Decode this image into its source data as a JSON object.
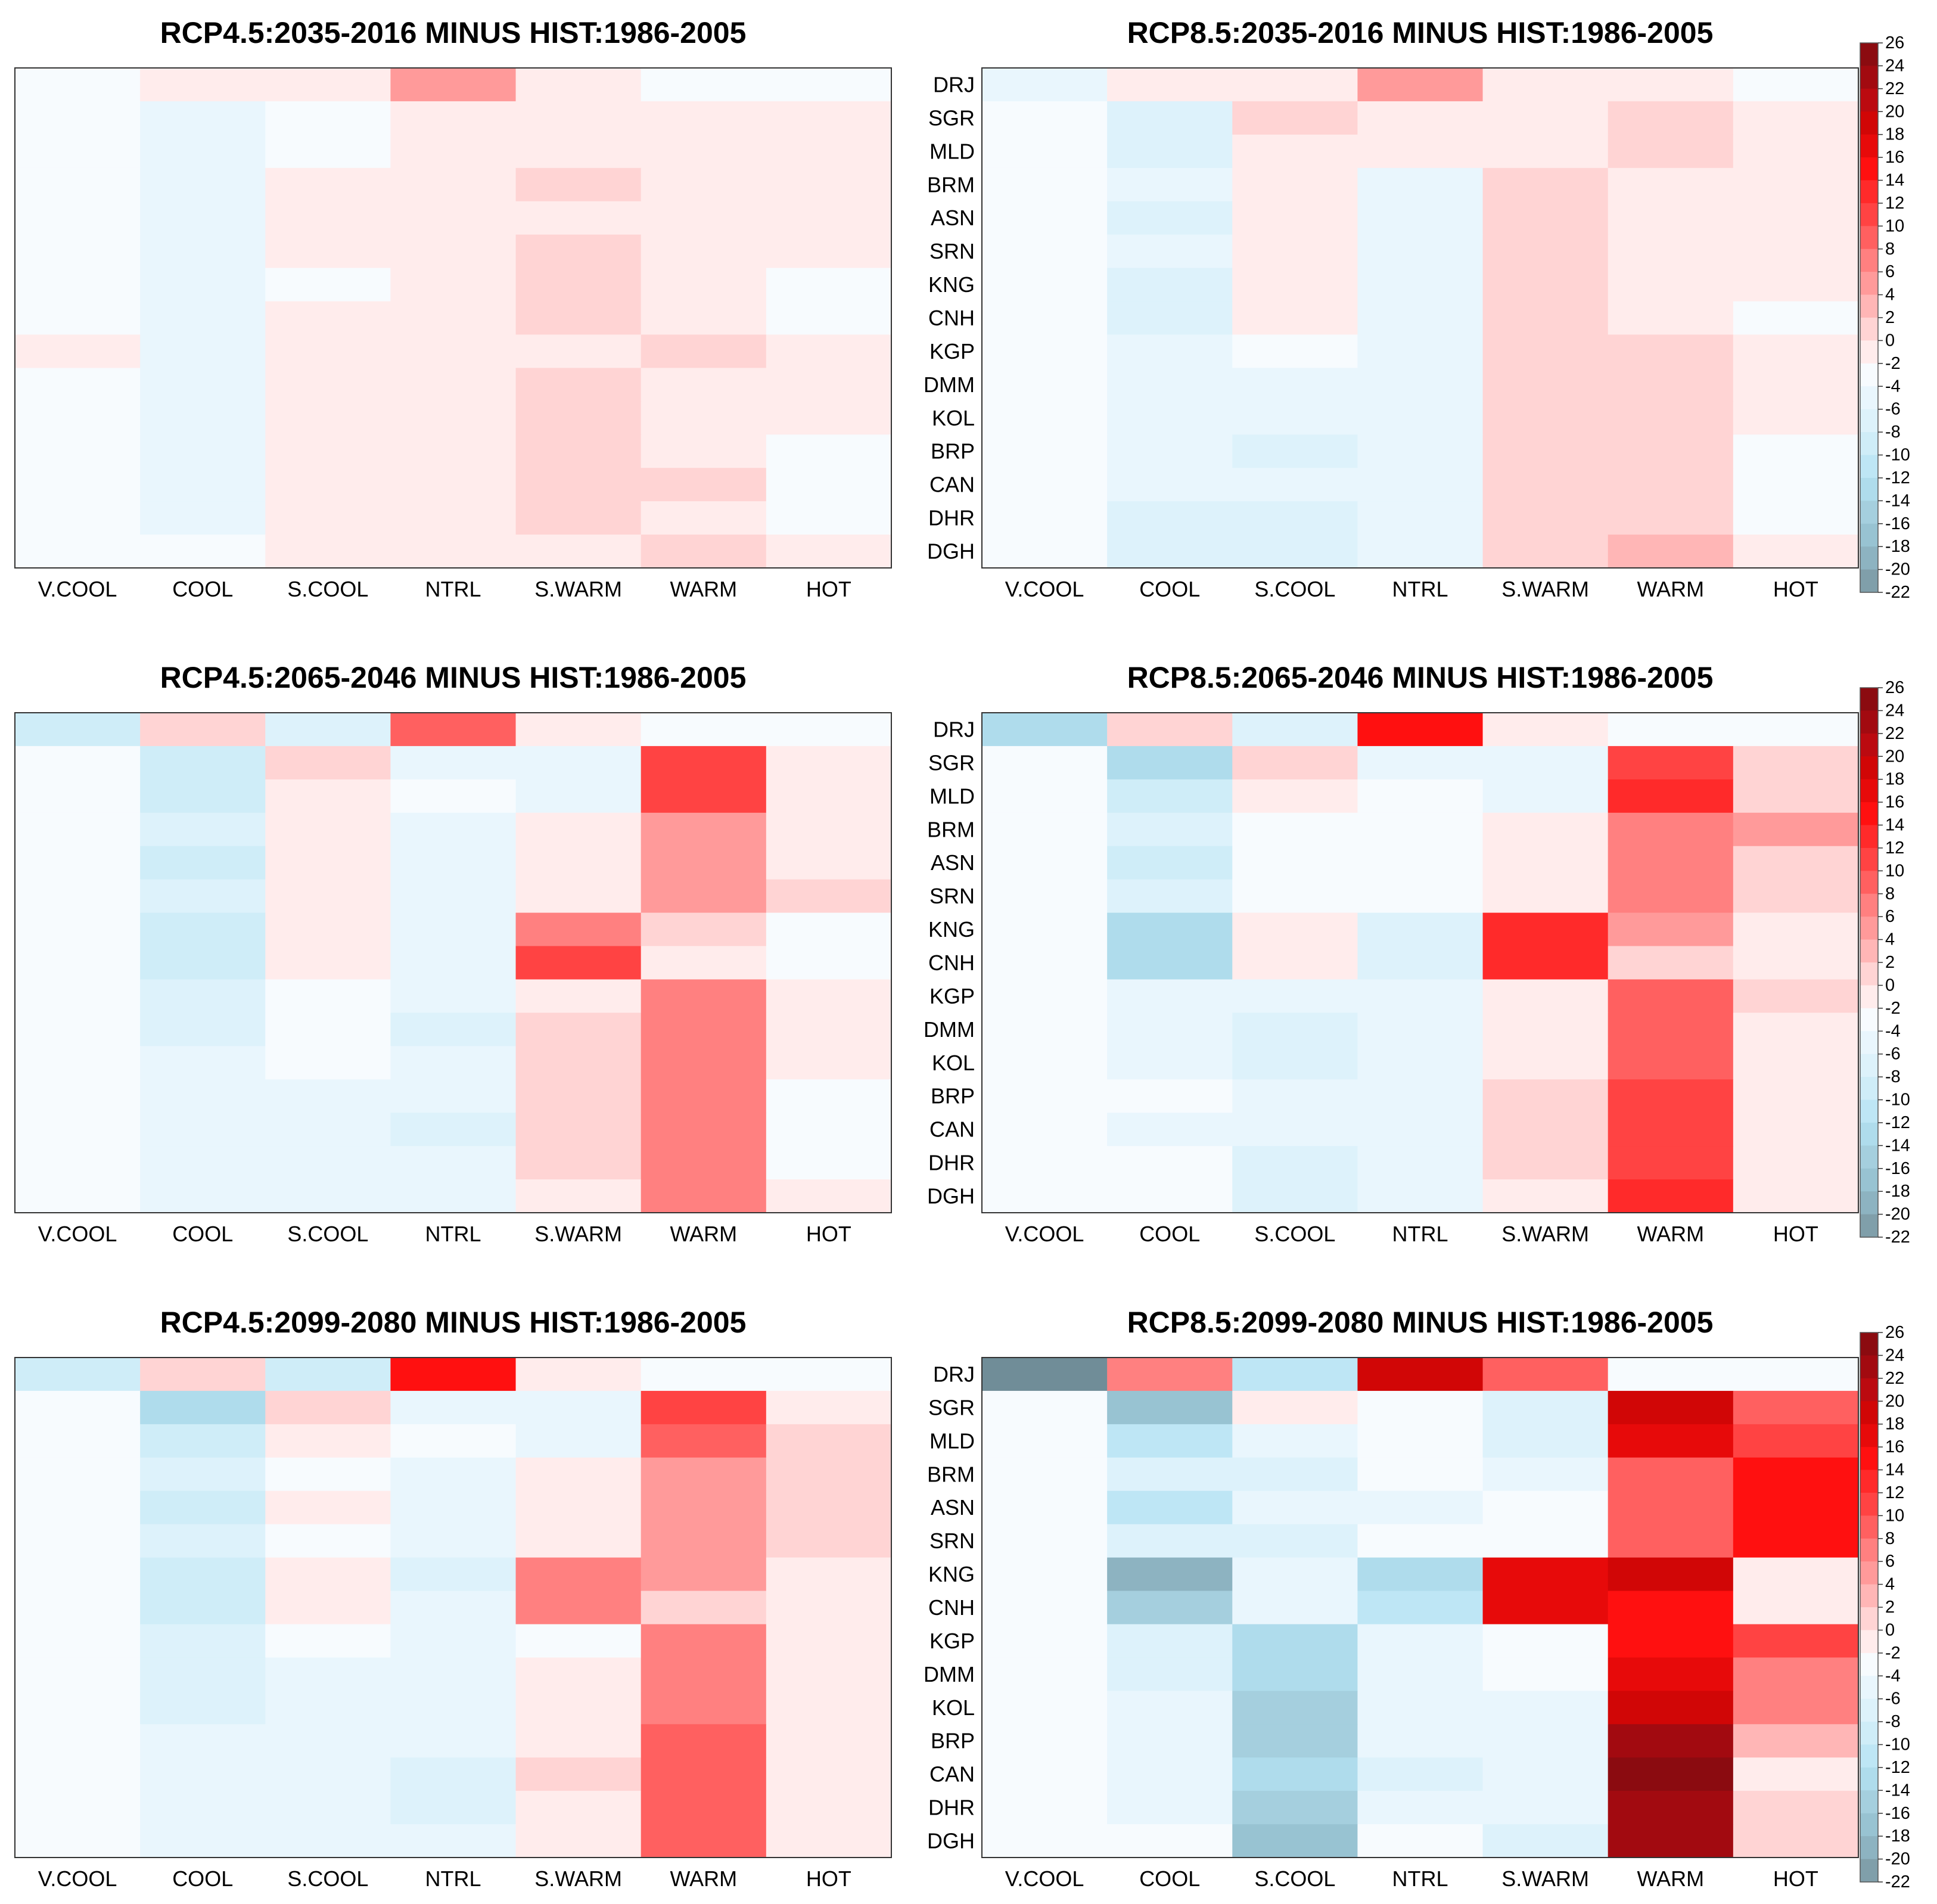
{
  "colorbar": {
    "ticks": [
      "26",
      "24",
      "22",
      "20",
      "18",
      "16",
      "14",
      "12",
      "10",
      "8",
      "6",
      "4",
      "2",
      "0",
      "-2",
      "-4",
      "-6",
      "-8",
      "-10",
      "-12",
      "-14",
      "-16",
      "-18",
      "-20",
      "-22"
    ],
    "colors": [
      "#8b0b10",
      "#a20a10",
      "#bb0a10",
      "#d10606",
      "#e70a0a",
      "#ff1010",
      "#ff2a2a",
      "#ff4343",
      "#ff6060",
      "#ff8080",
      "#ff9a9a",
      "#ffb6b6",
      "#ffd4d4",
      "#ffecec",
      "#f7fbfe",
      "#e9f6fd",
      "#ddf2fb",
      "#cfedf8",
      "#bee6f5",
      "#afdcec",
      "#a5cfde",
      "#98c3d2",
      "#8db3c1",
      "#809faa",
      "#708d98"
    ]
  },
  "chart_data": [
    {
      "type": "heatmap",
      "title": "RCP4.5:2035-2016 MINUS HIST:1986-2005",
      "categories": [
        "V.COOL",
        "COOL",
        "S.COOL",
        "NTRL",
        "S.WARM",
        "WARM",
        "HOT"
      ],
      "rows": [
        "DRJ",
        "SGR",
        "MLD",
        "BRM",
        "ASN",
        "SRN",
        "KNG",
        "CNH",
        "KGP",
        "DMM",
        "KOL",
        "BRP",
        "CAN",
        "DHR",
        "DGH"
      ],
      "show_row_labels": false,
      "zlim": [
        -22,
        26
      ],
      "values": [
        [
          -3,
          -1,
          -1,
          5,
          0,
          -2,
          -2
        ],
        [
          -2,
          -4,
          -2,
          -1,
          0,
          0,
          0
        ],
        [
          -2,
          -4,
          -2,
          0,
          0,
          0,
          0
        ],
        [
          -2,
          -4,
          0,
          -1,
          2,
          0,
          0
        ],
        [
          -2,
          -4,
          0,
          -1,
          0,
          0,
          0
        ],
        [
          -2,
          -4,
          0,
          -1,
          2,
          0,
          0
        ],
        [
          -2,
          -4,
          -2,
          0,
          2,
          0,
          -2
        ],
        [
          -2,
          -4,
          0,
          0,
          2,
          0,
          -2
        ],
        [
          0,
          -4,
          0,
          -1,
          0,
          2,
          -1
        ],
        [
          -2,
          -4,
          0,
          -1,
          2,
          0,
          -1
        ],
        [
          -2,
          -4,
          0,
          -1,
          2,
          0,
          -1
        ],
        [
          -2,
          -4,
          -1,
          -1,
          2,
          0,
          -2
        ],
        [
          -2,
          -4,
          -1,
          -1,
          2,
          2,
          -2
        ],
        [
          -2,
          -4,
          -1,
          -1,
          2,
          0,
          -2
        ],
        [
          -2,
          -2,
          -1,
          -1,
          0,
          2,
          -1
        ]
      ]
    },
    {
      "type": "heatmap",
      "title": "RCP8.5:2035-2016 MINUS HIST:1986-2005",
      "categories": [
        "V.COOL",
        "COOL",
        "S.COOL",
        "NTRL",
        "S.WARM",
        "WARM",
        "HOT"
      ],
      "rows": [
        "DRJ",
        "SGR",
        "MLD",
        "BRM",
        "ASN",
        "SRN",
        "KNG",
        "CNH",
        "KGP",
        "DMM",
        "KOL",
        "BRP",
        "CAN",
        "DHR",
        "DGH"
      ],
      "show_row_labels": true,
      "zlim": [
        -22,
        26
      ],
      "values": [
        [
          -4,
          0,
          0,
          5,
          0,
          -1,
          -2
        ],
        [
          -2,
          -6,
          2,
          -1,
          0,
          2,
          0
        ],
        [
          -2,
          -6,
          0,
          0,
          0,
          2,
          0
        ],
        [
          -2,
          -4,
          0,
          -4,
          2,
          0,
          0
        ],
        [
          -2,
          -6,
          0,
          -4,
          2,
          0,
          0
        ],
        [
          -2,
          -4,
          0,
          -4,
          2,
          0,
          0
        ],
        [
          -2,
          -6,
          0,
          -4,
          2,
          0,
          0
        ],
        [
          -2,
          -6,
          0,
          -4,
          2,
          0,
          -2
        ],
        [
          -2,
          -4,
          -2,
          -4,
          2,
          2,
          -1
        ],
        [
          -2,
          -4,
          -4,
          -4,
          2,
          2,
          -1
        ],
        [
          -2,
          -4,
          -4,
          -4,
          2,
          2,
          -1
        ],
        [
          -2,
          -4,
          -6,
          -4,
          2,
          2,
          -2
        ],
        [
          -2,
          -4,
          -4,
          -4,
          2,
          2,
          -2
        ],
        [
          -2,
          -6,
          -6,
          -4,
          2,
          2,
          -2
        ],
        [
          -2,
          -6,
          -6,
          -4,
          2,
          4,
          -1
        ]
      ]
    },
    {
      "type": "heatmap",
      "title": "RCP4.5:2065-2046 MINUS HIST:1986-2005",
      "categories": [
        "V.COOL",
        "COOL",
        "S.COOL",
        "NTRL",
        "S.WARM",
        "WARM",
        "HOT"
      ],
      "rows": [
        "DRJ",
        "SGR",
        "MLD",
        "BRM",
        "ASN",
        "SRN",
        "KNG",
        "CNH",
        "KGP",
        "DMM",
        "KOL",
        "BRP",
        "CAN",
        "DHR",
        "DGH"
      ],
      "show_row_labels": false,
      "zlim": [
        -22,
        26
      ],
      "values": [
        [
          -8,
          2,
          -6,
          10,
          0,
          -2,
          -2
        ],
        [
          -2,
          -8,
          2,
          -4,
          -4,
          12,
          -1
        ],
        [
          -2,
          -8,
          0,
          -2,
          -4,
          12,
          -1
        ],
        [
          -2,
          -6,
          0,
          -4,
          0,
          6,
          -1
        ],
        [
          -2,
          -8,
          0,
          -4,
          0,
          6,
          -1
        ],
        [
          -2,
          -6,
          0,
          -4,
          0,
          6,
          2
        ],
        [
          -2,
          -8,
          0,
          -4,
          8,
          2,
          -2
        ],
        [
          -2,
          -8,
          0,
          -4,
          12,
          0,
          -2
        ],
        [
          -2,
          -6,
          -2,
          -4,
          0,
          8,
          -1
        ],
        [
          -2,
          -6,
          -2,
          -6,
          2,
          8,
          -1
        ],
        [
          -2,
          -4,
          -2,
          -4,
          2,
          8,
          -1
        ],
        [
          -2,
          -4,
          -4,
          -4,
          2,
          8,
          -2
        ],
        [
          -2,
          -4,
          -4,
          -6,
          2,
          8,
          -2
        ],
        [
          -2,
          -4,
          -4,
          -4,
          2,
          8,
          -2
        ],
        [
          -2,
          -4,
          -4,
          -4,
          0,
          8,
          -1
        ]
      ]
    },
    {
      "type": "heatmap",
      "title": "RCP8.5:2065-2046 MINUS HIST:1986-2005",
      "categories": [
        "V.COOL",
        "COOL",
        "S.COOL",
        "NTRL",
        "S.WARM",
        "WARM",
        "HOT"
      ],
      "rows": [
        "DRJ",
        "SGR",
        "MLD",
        "BRM",
        "ASN",
        "SRN",
        "KNG",
        "CNH",
        "KGP",
        "DMM",
        "KOL",
        "BRP",
        "CAN",
        "DHR",
        "DGH"
      ],
      "show_row_labels": true,
      "zlim": [
        -22,
        26
      ],
      "values": [
        [
          -12,
          2,
          -6,
          16,
          0,
          -2,
          -2
        ],
        [
          -2,
          -12,
          2,
          -4,
          -4,
          12,
          2
        ],
        [
          -2,
          -8,
          0,
          -2,
          -4,
          14,
          2
        ],
        [
          -2,
          -6,
          -2,
          -2,
          0,
          8,
          6
        ],
        [
          -2,
          -8,
          -2,
          -2,
          0,
          8,
          2
        ],
        [
          -2,
          -6,
          -2,
          -2,
          0,
          8,
          2
        ],
        [
          -2,
          -12,
          0,
          -6,
          14,
          6,
          0
        ],
        [
          -2,
          -12,
          0,
          -6,
          14,
          2,
          0
        ],
        [
          -2,
          -4,
          -4,
          -4,
          0,
          10,
          2
        ],
        [
          -2,
          -4,
          -6,
          -4,
          0,
          10,
          0
        ],
        [
          -2,
          -4,
          -6,
          -4,
          0,
          10,
          0
        ],
        [
          -2,
          -2,
          -4,
          -4,
          2,
          12,
          0
        ],
        [
          -2,
          -4,
          -4,
          -4,
          2,
          12,
          0
        ],
        [
          -2,
          -2,
          -6,
          -4,
          2,
          12,
          0
        ],
        [
          -2,
          -2,
          -6,
          -4,
          0,
          14,
          0
        ]
      ]
    },
    {
      "type": "heatmap",
      "title": "RCP4.5:2099-2080 MINUS HIST:1986-2005",
      "categories": [
        "V.COOL",
        "COOL",
        "S.COOL",
        "NTRL",
        "S.WARM",
        "WARM",
        "HOT"
      ],
      "rows": [
        "DRJ",
        "SGR",
        "MLD",
        "BRM",
        "ASN",
        "SRN",
        "KNG",
        "CNH",
        "KGP",
        "DMM",
        "KOL",
        "BRP",
        "CAN",
        "DHR",
        "DGH"
      ],
      "show_row_labels": false,
      "zlim": [
        -22,
        26
      ],
      "values": [
        [
          -8,
          2,
          -8,
          16,
          0,
          -2,
          -2
        ],
        [
          -2,
          -12,
          2,
          -4,
          -4,
          12,
          0
        ],
        [
          -2,
          -8,
          0,
          -2,
          -4,
          10,
          2
        ],
        [
          -2,
          -6,
          -2,
          -4,
          0,
          6,
          2
        ],
        [
          -2,
          -8,
          0,
          -4,
          0,
          6,
          2
        ],
        [
          -2,
          -6,
          -2,
          -4,
          0,
          6,
          2
        ],
        [
          -2,
          -8,
          0,
          -6,
          8,
          6,
          0
        ],
        [
          -2,
          -8,
          0,
          -4,
          8,
          2,
          0
        ],
        [
          -2,
          -6,
          -2,
          -4,
          -2,
          8,
          0
        ],
        [
          -2,
          -6,
          -4,
          -4,
          0,
          8,
          0
        ],
        [
          -2,
          -6,
          -4,
          -4,
          0,
          8,
          0
        ],
        [
          -2,
          -4,
          -4,
          -4,
          0,
          10,
          0
        ],
        [
          -2,
          -4,
          -4,
          -6,
          2,
          10,
          0
        ],
        [
          -2,
          -4,
          -4,
          -6,
          0,
          10,
          0
        ],
        [
          -2,
          -4,
          -4,
          -4,
          0,
          10,
          0
        ]
      ]
    },
    {
      "type": "heatmap",
      "title": "RCP8.5:2099-2080 MINUS HIST:1986-2005",
      "categories": [
        "V.COOL",
        "COOL",
        "S.COOL",
        "NTRL",
        "S.WARM",
        "WARM",
        "HOT"
      ],
      "rows": [
        "DRJ",
        "SGR",
        "MLD",
        "BRM",
        "ASN",
        "SRN",
        "KNG",
        "CNH",
        "KGP",
        "DMM",
        "KOL",
        "BRP",
        "CAN",
        "DHR",
        "DGH"
      ],
      "show_row_labels": true,
      "zlim": [
        -22,
        26
      ],
      "values": [
        [
          -22,
          8,
          -10,
          20,
          10,
          -2,
          -2
        ],
        [
          -2,
          -16,
          0,
          -2,
          -6,
          20,
          10
        ],
        [
          -2,
          -10,
          -4,
          -2,
          -6,
          18,
          12
        ],
        [
          -2,
          -6,
          -6,
          -2,
          -4,
          10,
          16
        ],
        [
          -2,
          -10,
          -4,
          -4,
          -2,
          10,
          16
        ],
        [
          -2,
          -6,
          -6,
          -2,
          -2,
          10,
          16
        ],
        [
          -2,
          -18,
          -4,
          -12,
          18,
          20,
          0
        ],
        [
          -2,
          -14,
          -4,
          -10,
          18,
          16,
          0
        ],
        [
          -2,
          -6,
          -12,
          -4,
          -2,
          16,
          12
        ],
        [
          -2,
          -6,
          -12,
          -4,
          -2,
          18,
          8
        ],
        [
          -2,
          -4,
          -14,
          -4,
          -4,
          20,
          8
        ],
        [
          -2,
          -4,
          -14,
          -4,
          -4,
          24,
          4
        ],
        [
          -2,
          -4,
          -12,
          -6,
          -4,
          26,
          0
        ],
        [
          -2,
          -4,
          -14,
          -4,
          -4,
          24,
          2
        ],
        [
          -2,
          -2,
          -16,
          -2,
          -6,
          24,
          2
        ]
      ]
    }
  ]
}
